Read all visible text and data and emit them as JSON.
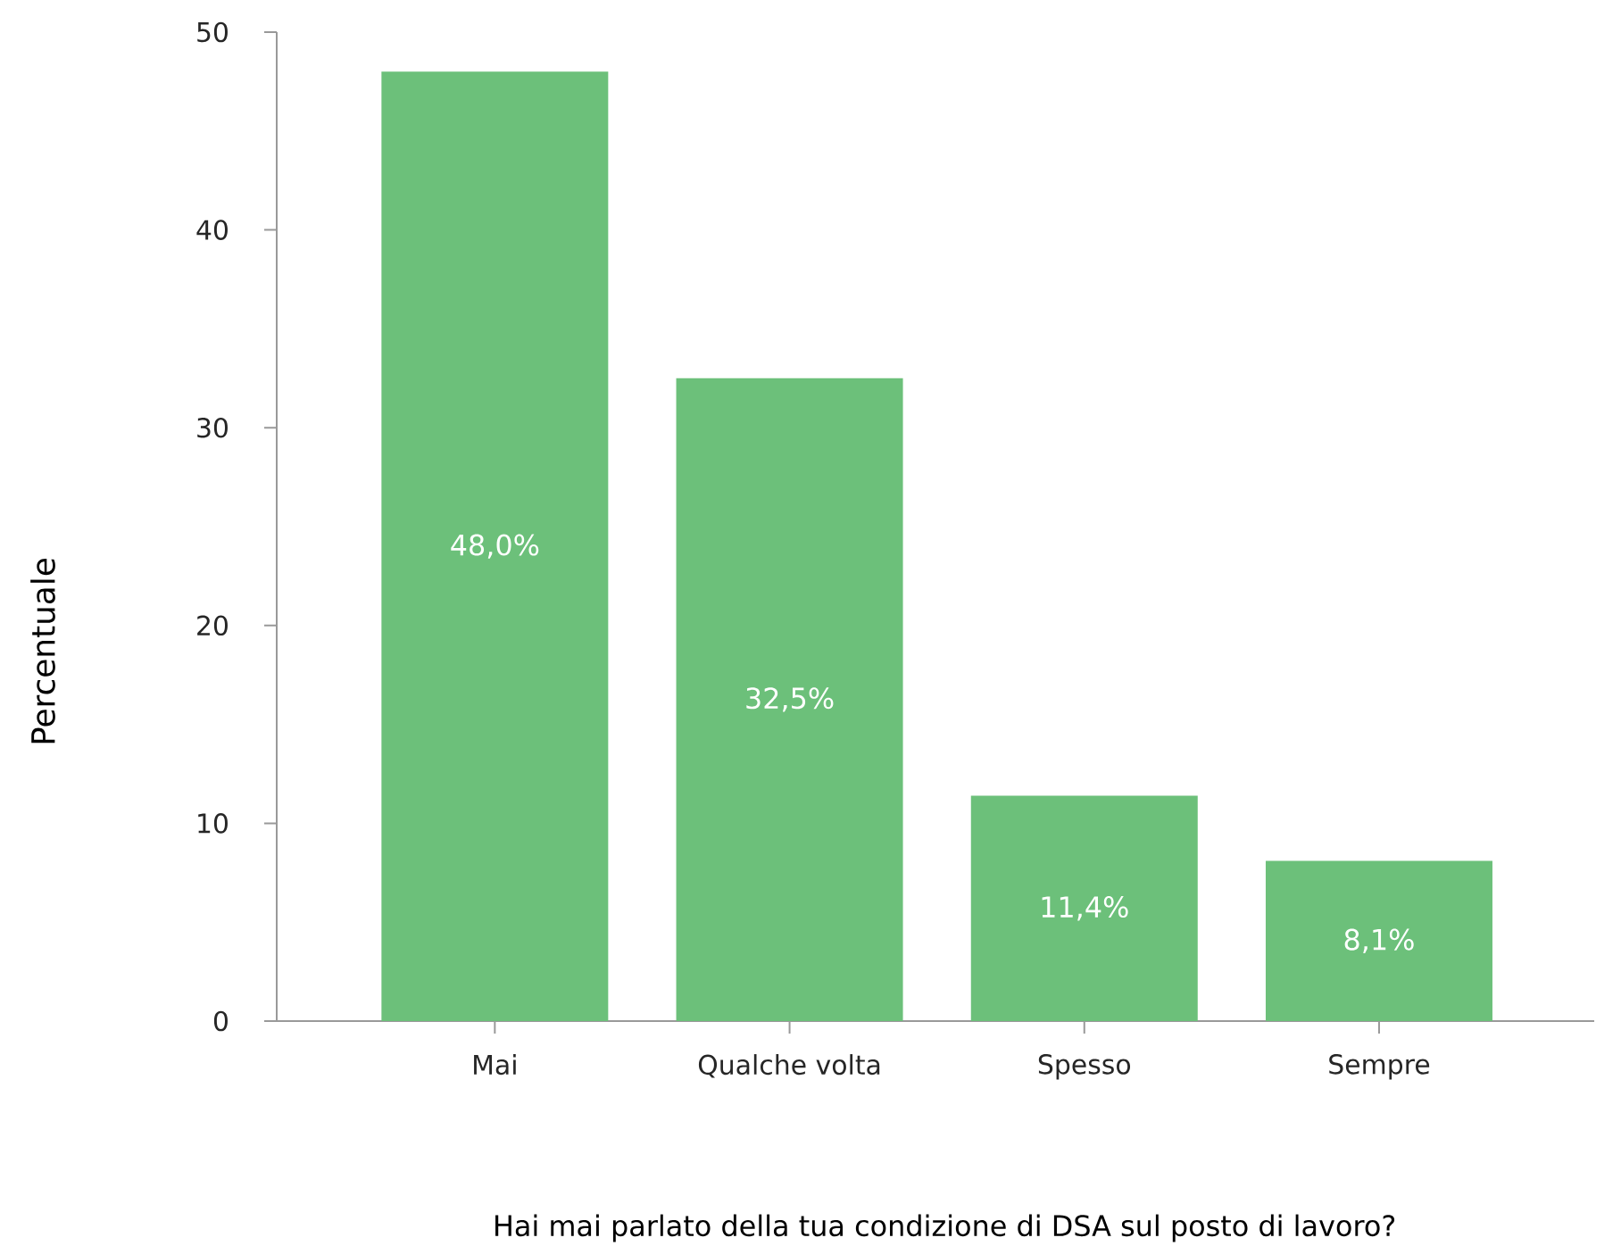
{
  "chart_data": {
    "type": "bar",
    "xlabel": "Hai mai parlato della tua condizione di DSA sul posto di lavoro?",
    "ylabel": "Percentuale",
    "categories": [
      "Mai",
      "Qualche volta",
      "Spesso",
      "Sempre"
    ],
    "values": [
      48.0,
      32.5,
      11.4,
      8.1
    ],
    "value_labels": [
      "48,0%",
      "32,5%",
      "11,4%",
      "8,1%"
    ],
    "color": "#6cc07a",
    "ylim": [
      0,
      50
    ],
    "yticks": [
      0,
      10,
      20,
      30,
      40,
      50
    ],
    "grid": false
  }
}
